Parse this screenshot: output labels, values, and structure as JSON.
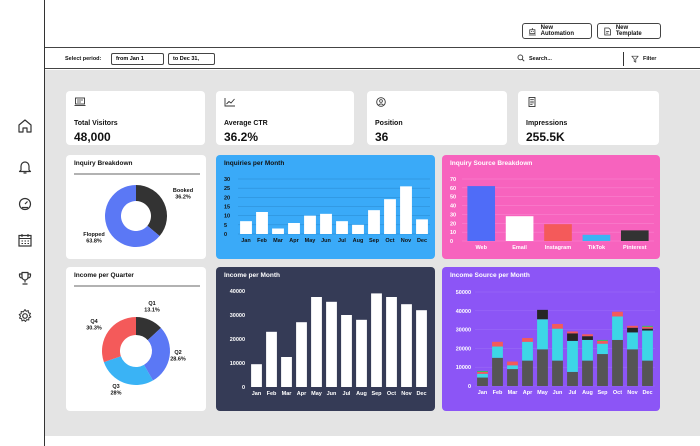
{
  "topbar": {
    "new_automation": "New Automation",
    "new_template": "New Template"
  },
  "filters": {
    "label": "Select period:",
    "from": "from Jan 1",
    "to": "to Dec 31,",
    "search_placeholder": "Search...",
    "filter_label": "Filter"
  },
  "sidebar": {
    "items": [
      "home-icon",
      "bell-icon",
      "gauge-icon",
      "calendar-icon",
      "trophy-icon",
      "gear-icon"
    ]
  },
  "kpis": [
    {
      "label": "Total Visitors",
      "value": "48,000",
      "icon": "laptop-icon"
    },
    {
      "label": "Average CTR",
      "value": "36.2%",
      "icon": "line-chart-icon"
    },
    {
      "label": "Position",
      "value": "36",
      "icon": "user-circle-icon"
    },
    {
      "label": "Impressions",
      "value": "255.5K",
      "icon": "document-icon"
    }
  ],
  "inquiry_breakdown": {
    "title": "Inquiry Breakdown",
    "chart_data": {
      "type": "pie",
      "labels": [
        "Booked",
        "Flopped"
      ],
      "values": [
        36.2,
        63.8
      ],
      "value_labels": [
        "36.2%",
        "63.8%"
      ],
      "colors": [
        "#333333",
        "#5b78f5"
      ]
    }
  },
  "income_quarter": {
    "title": "Income per Quarter",
    "chart_data": {
      "type": "pie",
      "labels": [
        "Q1",
        "Q2",
        "Q3",
        "Q4"
      ],
      "values": [
        13.1,
        28.6,
        28,
        30.3
      ],
      "value_labels": [
        "13.1%",
        "28.6%",
        "28%",
        "30.3%"
      ],
      "colors": [
        "#333333",
        "#5b78f5",
        "#3ab3f5",
        "#f45a5a"
      ]
    }
  },
  "inquiries_month": {
    "title": "Inquiries per Month",
    "bg": "#3aaaf8",
    "chart_data": {
      "type": "bar",
      "categories": [
        "Jan",
        "Feb",
        "Mar",
        "Apr",
        "May",
        "Jun",
        "Jul",
        "Aug",
        "Sep",
        "Oct",
        "Nov",
        "Dec"
      ],
      "values": [
        7,
        12,
        3,
        6,
        10,
        11,
        7,
        5,
        13,
        19,
        26,
        8
      ],
      "ylim": [
        0,
        30
      ],
      "yticks": [
        0,
        5,
        10,
        15,
        20,
        25,
        30
      ]
    }
  },
  "inquiry_source": {
    "title": "Inquiry Source Breakdown",
    "bg": "#f763be",
    "chart_data": {
      "type": "bar",
      "categories": [
        "Web",
        "Email",
        "Instagram",
        "TikTok",
        "Pinterest"
      ],
      "values": [
        62,
        28,
        19,
        7,
        12
      ],
      "colors": [
        "#4f6cf8",
        "#ffffff",
        "#f45a5a",
        "#3ab3f5",
        "#333333"
      ],
      "ylim": [
        0,
        70
      ],
      "yticks": [
        0,
        10,
        20,
        30,
        40,
        50,
        60,
        70
      ]
    }
  },
  "income_month": {
    "title": "Income per Month",
    "bg": "#353b56",
    "chart_data": {
      "type": "bar",
      "categories": [
        "Jan",
        "Feb",
        "Mar",
        "Apr",
        "May",
        "Jun",
        "Jul",
        "Aug",
        "Sep",
        "Oct",
        "Nov",
        "Dec"
      ],
      "values": [
        9500,
        23000,
        12500,
        27000,
        37500,
        35500,
        30000,
        28000,
        39000,
        37500,
        34500,
        32000
      ],
      "ylim": [
        0,
        40000
      ],
      "yticks": [
        0,
        10000,
        20000,
        30000,
        40000
      ]
    }
  },
  "income_source": {
    "title": "Income Source per Month",
    "bg": "#8c55f6",
    "chart_data": {
      "type": "bar-stacked",
      "categories": [
        "Jan",
        "Feb",
        "Mar",
        "Apr",
        "May",
        "Jun",
        "Jul",
        "Aug",
        "Sep",
        "Oct",
        "Nov",
        "Dec"
      ],
      "series": [
        {
          "color": "#555555",
          "values": [
            4500,
            15000,
            9000,
            13500,
            19500,
            13500,
            7500,
            13500,
            17000,
            24500,
            19500,
            13500
          ]
        },
        {
          "color": "#3dd6e6",
          "values": [
            2000,
            6000,
            2000,
            10000,
            16000,
            17000,
            16500,
            11000,
            5500,
            12500,
            9000,
            16000
          ]
        },
        {
          "color": "#262626",
          "values": [
            0,
            0,
            0,
            0,
            5000,
            0,
            4000,
            2000,
            0,
            0,
            2500,
            1000
          ]
        },
        {
          "color": "#f45a5a",
          "values": [
            1000,
            2500,
            2000,
            2000,
            0,
            2500,
            1000,
            1000,
            1500,
            2500,
            1000,
            1000
          ]
        },
        {
          "color": "#30c45a",
          "values": [
            500,
            0,
            0,
            0,
            0,
            0,
            0,
            0,
            500,
            0,
            0,
            500
          ]
        }
      ],
      "ylim": [
        0,
        50000
      ],
      "yticks": [
        0,
        10000,
        20000,
        30000,
        40000,
        50000
      ]
    }
  }
}
